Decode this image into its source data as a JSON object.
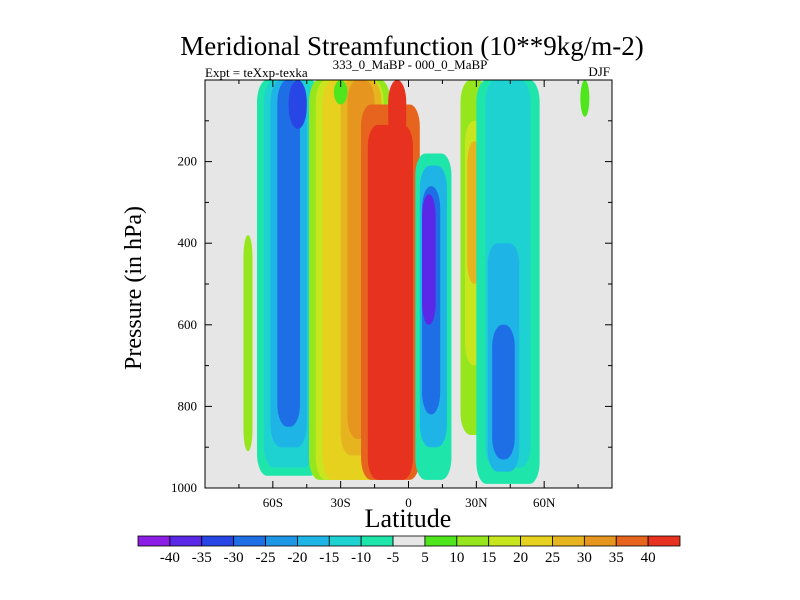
{
  "chart_data": {
    "type": "heatmap",
    "title": "Meridional Streamfunction (10**9kg/m-2)",
    "left_string": "Expt = teXxp-texka",
    "center_string": "333_0_MaBP - 000_0_MaBP",
    "right_string": "DJF",
    "xlabel": "Latitude",
    "ylabel": "Pressure (in hPa)",
    "xlim": [
      -90,
      90
    ],
    "ylim": [
      1000,
      0
    ],
    "x_ticks": [
      {
        "value": -60,
        "label": "60S"
      },
      {
        "value": -30,
        "label": "30S"
      },
      {
        "value": 0,
        "label": "0"
      },
      {
        "value": 30,
        "label": "30N"
      },
      {
        "value": 60,
        "label": "60N"
      }
    ],
    "y_ticks": [
      {
        "value": 200,
        "label": "200"
      },
      {
        "value": 400,
        "label": "400"
      },
      {
        "value": 600,
        "label": "600"
      },
      {
        "value": 800,
        "label": "800"
      },
      {
        "value": 1000,
        "label": "1000"
      }
    ],
    "background_color": "#e6e6e6",
    "colorbar": {
      "labels": [
        "-40",
        "-35",
        "-30",
        "-25",
        "-20",
        "-15",
        "-10",
        "-5",
        "5",
        "10",
        "15",
        "20",
        "25",
        "30",
        "35",
        "40"
      ],
      "colors": [
        "#8c1ee6",
        "#5a28e6",
        "#2846e6",
        "#1e6ee6",
        "#1e96e6",
        "#1eb4e6",
        "#1ed2d2",
        "#1ee6aa",
        "#e6e6e6",
        "#50e61e",
        "#96e61e",
        "#c8e61e",
        "#e6d21e",
        "#e6b41e",
        "#e6961e",
        "#e6641e",
        "#e6321e"
      ]
    },
    "cells": [
      {
        "lat": -71,
        "p_top": 380,
        "p_bottom": 910,
        "half_width": 2,
        "value": 10
      },
      {
        "lat": -53,
        "p_top": 0,
        "p_bottom": 970,
        "half_width": 14,
        "value": -10
      },
      {
        "lat": -53,
        "p_top": 0,
        "p_bottom": 950,
        "half_width": 11,
        "value": -15
      },
      {
        "lat": -53,
        "p_top": 0,
        "p_bottom": 900,
        "half_width": 8,
        "value": -20
      },
      {
        "lat": -53,
        "p_top": 0,
        "p_bottom": 850,
        "half_width": 5,
        "value": -30
      },
      {
        "lat": -49,
        "p_top": 0,
        "p_bottom": 120,
        "half_width": 4,
        "value": -35
      },
      {
        "lat": -26,
        "p_top": 0,
        "p_bottom": 980,
        "half_width": 18,
        "value": 10
      },
      {
        "lat": -26,
        "p_top": 0,
        "p_bottom": 980,
        "half_width": 15,
        "value": 15
      },
      {
        "lat": -26,
        "p_top": 0,
        "p_bottom": 980,
        "half_width": 12,
        "value": 20
      },
      {
        "lat": -21,
        "p_top": 0,
        "p_bottom": 920,
        "half_width": 9,
        "value": 25
      },
      {
        "lat": -21,
        "p_top": 0,
        "p_bottom": 880,
        "half_width": 6,
        "value": 30
      },
      {
        "lat": -8,
        "p_top": 60,
        "p_bottom": 980,
        "half_width": 13,
        "value": 35
      },
      {
        "lat": -8,
        "p_top": 110,
        "p_bottom": 980,
        "half_width": 10,
        "value": 40
      },
      {
        "lat": -5,
        "p_top": 0,
        "p_bottom": 150,
        "half_width": 4,
        "value": 40
      },
      {
        "lat": -30,
        "p_top": 0,
        "p_bottom": 60,
        "half_width": 3,
        "value": 5
      },
      {
        "lat": 11,
        "p_top": 180,
        "p_bottom": 980,
        "half_width": 8,
        "value": -10
      },
      {
        "lat": 11,
        "p_top": 210,
        "p_bottom": 900,
        "half_width": 6,
        "value": -20
      },
      {
        "lat": 10,
        "p_top": 260,
        "p_bottom": 820,
        "half_width": 4,
        "value": -30
      },
      {
        "lat": 9,
        "p_top": 280,
        "p_bottom": 600,
        "half_width": 3,
        "value": -40
      },
      {
        "lat": 29,
        "p_top": 0,
        "p_bottom": 870,
        "half_width": 6,
        "value": 10
      },
      {
        "lat": 29,
        "p_top": 100,
        "p_bottom": 700,
        "half_width": 4,
        "value": 15
      },
      {
        "lat": 29,
        "p_top": 150,
        "p_bottom": 500,
        "half_width": 3,
        "value": 25
      },
      {
        "lat": 35,
        "p_top": 0,
        "p_bottom": 250,
        "half_width": 3,
        "value": 5
      },
      {
        "lat": 44,
        "p_top": 0,
        "p_bottom": 990,
        "half_width": 14,
        "value": -10
      },
      {
        "lat": 44,
        "p_top": 0,
        "p_bottom": 950,
        "half_width": 10,
        "value": -15
      },
      {
        "lat": 42,
        "p_top": 400,
        "p_bottom": 960,
        "half_width": 7,
        "value": -20
      },
      {
        "lat": 42,
        "p_top": 600,
        "p_bottom": 930,
        "half_width": 5,
        "value": -30
      },
      {
        "lat": 78,
        "p_top": 0,
        "p_bottom": 90,
        "half_width": 2,
        "value": 5
      }
    ]
  }
}
